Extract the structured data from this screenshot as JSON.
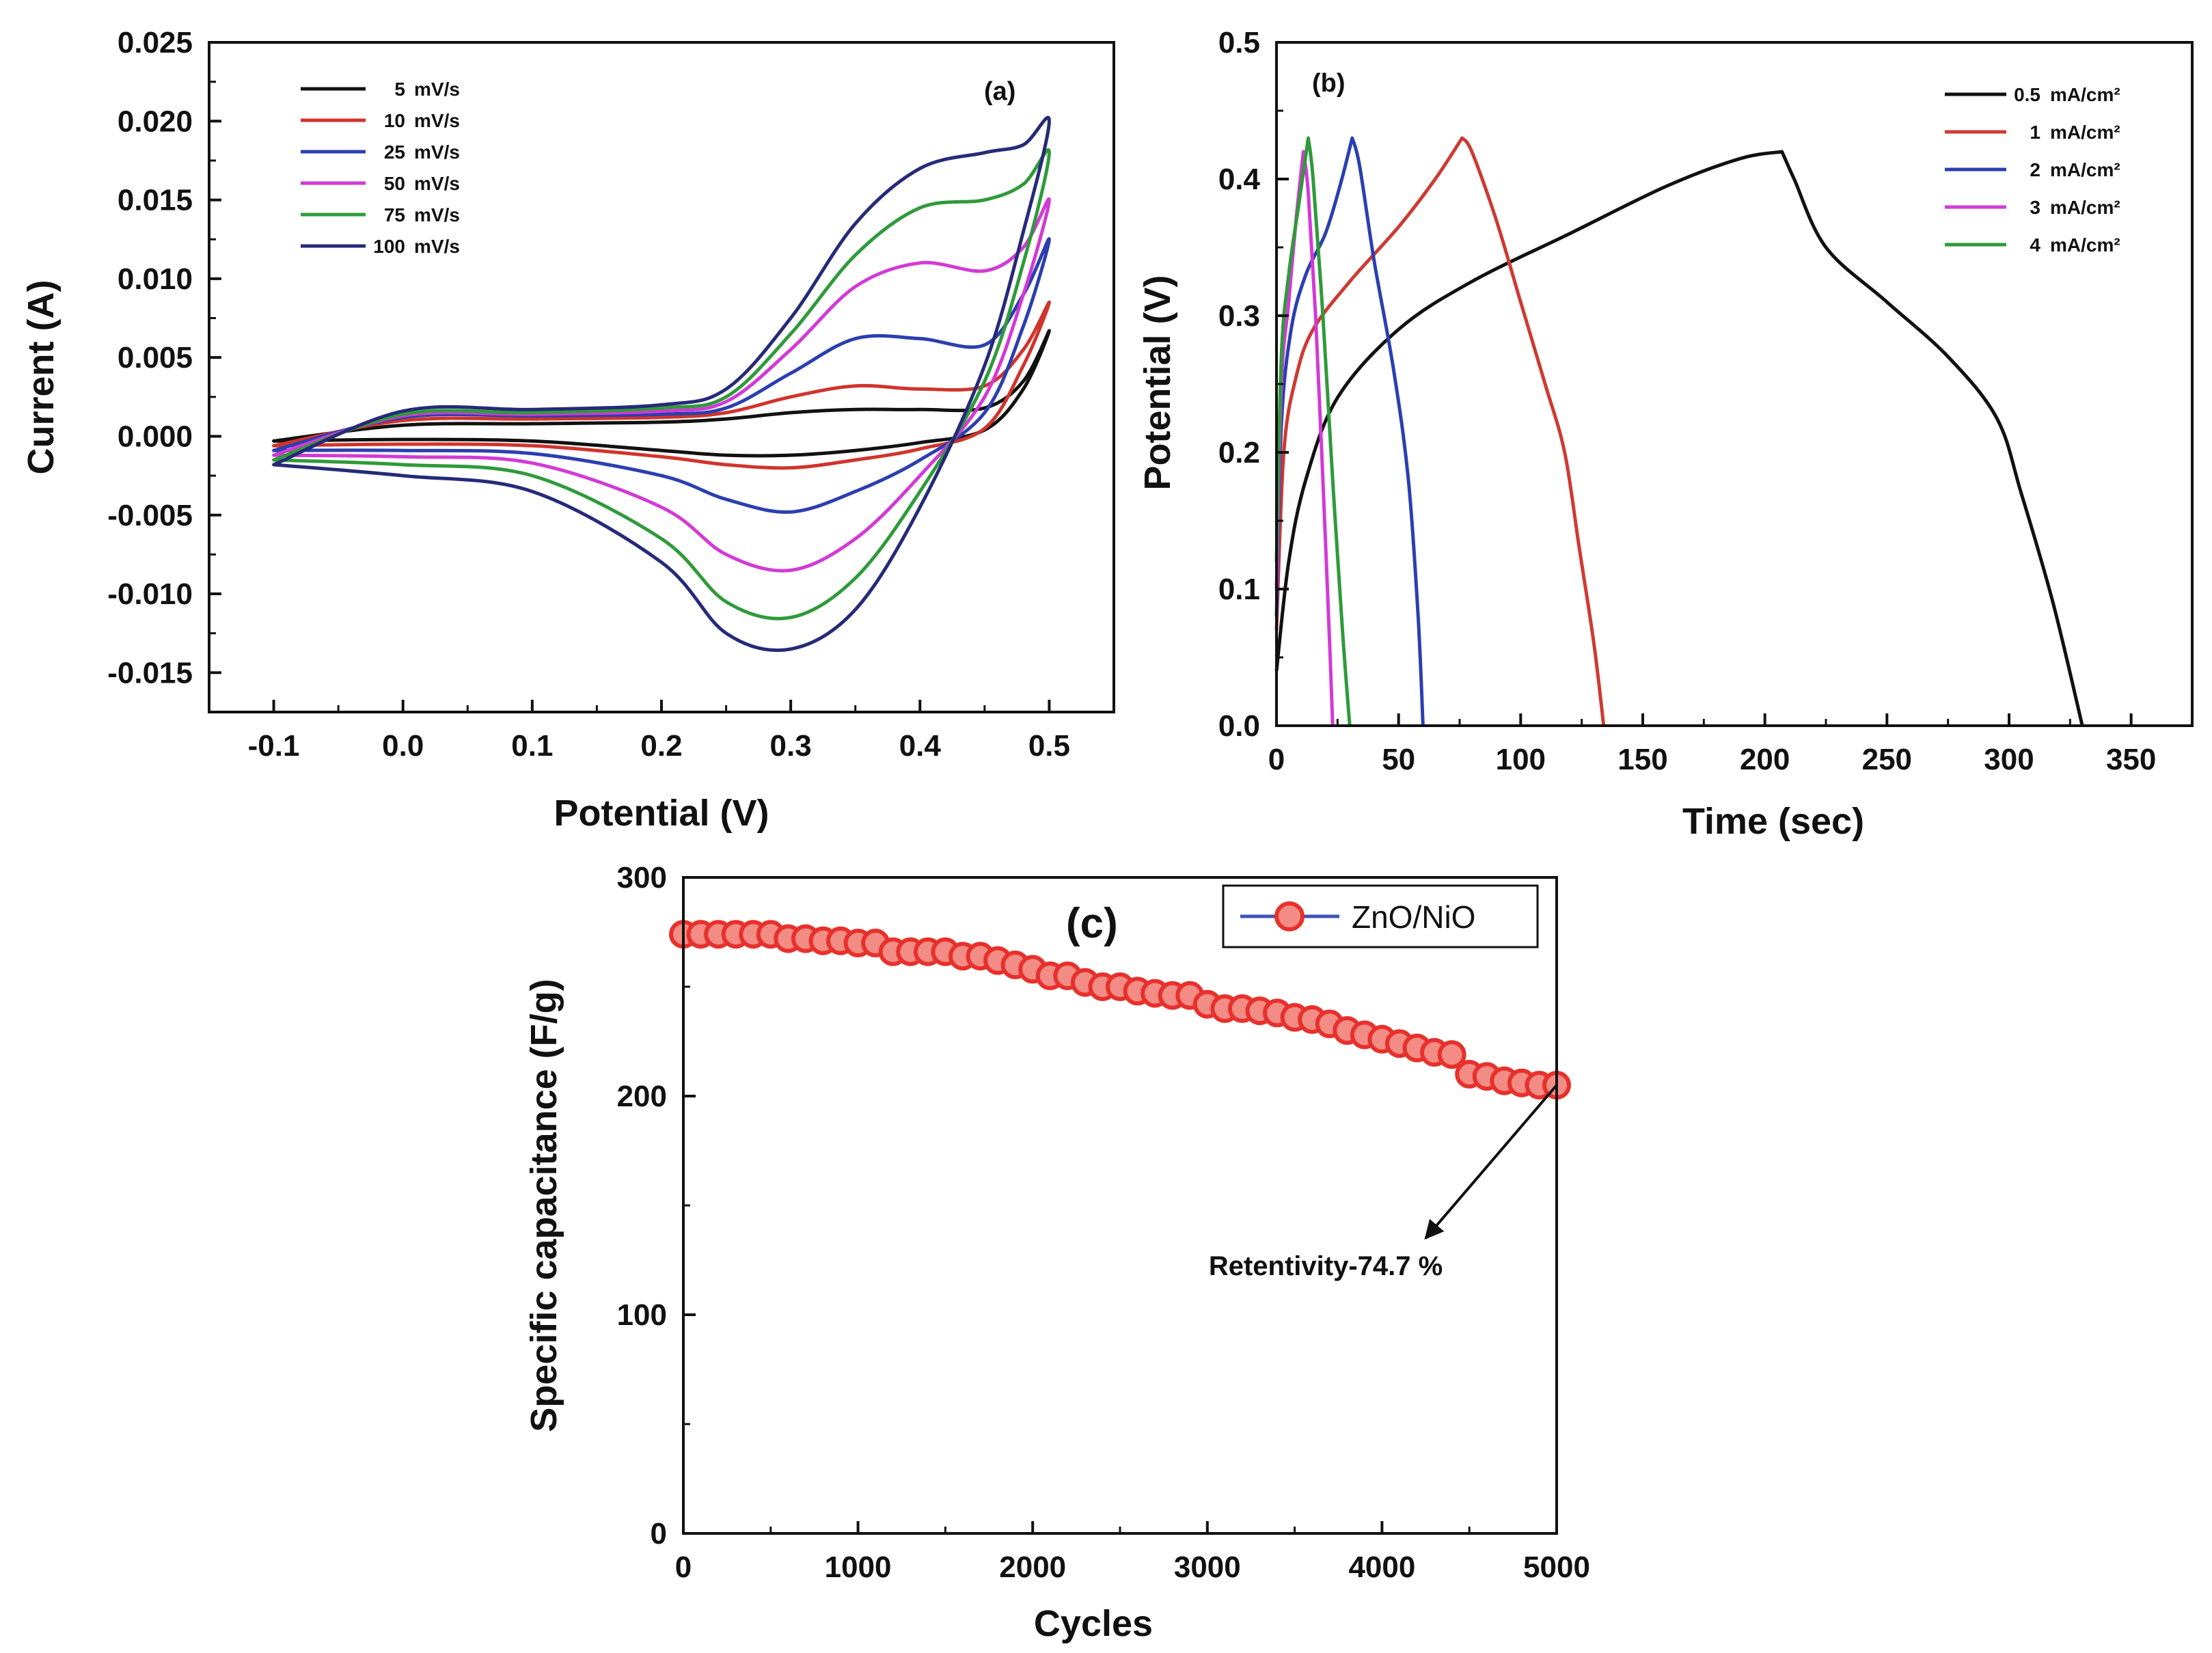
{
  "chart_data": [
    {
      "panel": "(a)",
      "type": "line",
      "title": "",
      "xlabel": "Potential (V)",
      "ylabel": "Current (A)",
      "xlim": [
        -0.15,
        0.55
      ],
      "ylim": [
        -0.0175,
        0.025
      ],
      "xticks": [
        -0.1,
        0.0,
        0.1,
        0.2,
        0.3,
        0.4,
        0.5
      ],
      "xtick_labels": [
        "-0.1",
        "0.0",
        "0.1",
        "0.2",
        "0.3",
        "0.4",
        "0.5"
      ],
      "yticks": [
        -0.015,
        -0.01,
        -0.005,
        0.0,
        0.005,
        0.01,
        0.015,
        0.02,
        0.025
      ],
      "ytick_labels": [
        "-0.015",
        "-0.010",
        "-0.005",
        "0.000",
        "0.005",
        "0.010",
        "0.015",
        "0.020",
        "0.025"
      ],
      "legend_position": "top-left",
      "series": [
        {
          "name": "5  mV/s",
          "label_rate": "5",
          "unit": "mV/s",
          "color": "#111111",
          "x": [
            -0.1,
            0.0,
            0.1,
            0.2,
            0.25,
            0.3,
            0.35,
            0.4,
            0.45,
            0.48,
            0.5,
            0.48,
            0.45,
            0.4,
            0.35,
            0.3,
            0.25,
            0.2,
            0.1,
            0.0,
            -0.1
          ],
          "y": [
            -0.0003,
            0.0007,
            0.0008,
            0.0009,
            0.0011,
            0.0015,
            0.0017,
            0.0017,
            0.0018,
            0.0035,
            0.0067,
            0.003,
            0.0004,
            -0.0004,
            -0.0009,
            -0.0012,
            -0.0012,
            -0.0009,
            -0.0003,
            -0.0002,
            -0.0003
          ]
        },
        {
          "name": "10  mV/s",
          "label_rate": "10",
          "unit": "mV/s",
          "color": "#d0342c",
          "x": [
            -0.1,
            0.0,
            0.1,
            0.2,
            0.25,
            0.3,
            0.35,
            0.4,
            0.45,
            0.48,
            0.5,
            0.48,
            0.45,
            0.4,
            0.35,
            0.3,
            0.25,
            0.2,
            0.1,
            0.0,
            -0.1
          ],
          "y": [
            -0.0006,
            0.001,
            0.0011,
            0.0012,
            0.0015,
            0.0025,
            0.0032,
            0.003,
            0.0032,
            0.0055,
            0.0085,
            0.0045,
            0.0005,
            -0.0008,
            -0.0015,
            -0.002,
            -0.0018,
            -0.0013,
            -0.0006,
            -0.0005,
            -0.0006
          ]
        },
        {
          "name": "25  mV/s",
          "label_rate": "25",
          "unit": "mV/s",
          "color": "#2b3fb0",
          "x": [
            -0.1,
            0.0,
            0.1,
            0.2,
            0.25,
            0.3,
            0.35,
            0.4,
            0.45,
            0.48,
            0.5,
            0.48,
            0.45,
            0.4,
            0.35,
            0.3,
            0.25,
            0.2,
            0.1,
            0.0,
            -0.1
          ],
          "y": [
            -0.0009,
            0.0012,
            0.0013,
            0.0014,
            0.0018,
            0.004,
            0.0062,
            0.0062,
            0.0058,
            0.009,
            0.0125,
            0.007,
            0.0015,
            -0.0015,
            -0.0035,
            -0.0048,
            -0.004,
            -0.0025,
            -0.0011,
            -0.0009,
            -0.0009
          ]
        },
        {
          "name": "50  mV/s",
          "label_rate": "50",
          "unit": "mV/s",
          "color": "#d23ad6",
          "x": [
            -0.1,
            0.0,
            0.1,
            0.2,
            0.25,
            0.3,
            0.35,
            0.4,
            0.45,
            0.48,
            0.5,
            0.48,
            0.45,
            0.4,
            0.35,
            0.3,
            0.25,
            0.2,
            0.1,
            0.0,
            -0.1
          ],
          "y": [
            -0.0012,
            0.0013,
            0.0014,
            0.0016,
            0.0022,
            0.0055,
            0.0095,
            0.011,
            0.0105,
            0.012,
            0.015,
            0.009,
            0.0025,
            -0.0025,
            -0.0065,
            -0.0085,
            -0.0075,
            -0.0045,
            -0.0017,
            -0.0013,
            -0.0012
          ]
        },
        {
          "name": "75  mV/s",
          "label_rate": "75",
          "unit": "mV/s",
          "color": "#2f9a3a",
          "x": [
            -0.1,
            0.0,
            0.1,
            0.2,
            0.25,
            0.3,
            0.35,
            0.4,
            0.45,
            0.48,
            0.5,
            0.48,
            0.45,
            0.4,
            0.35,
            0.3,
            0.25,
            0.2,
            0.1,
            0.0,
            -0.1
          ],
          "y": [
            -0.0015,
            0.0014,
            0.0015,
            0.0018,
            0.0025,
            0.0065,
            0.0115,
            0.0145,
            0.015,
            0.016,
            0.018,
            0.011,
            0.0035,
            -0.0035,
            -0.009,
            -0.0115,
            -0.0105,
            -0.0065,
            -0.0025,
            -0.0018,
            -0.0015
          ]
        },
        {
          "name": "100 mV/s",
          "label_rate": "100",
          "unit": "mV/s",
          "color": "#262a78",
          "x": [
            -0.1,
            0.0,
            0.1,
            0.2,
            0.25,
            0.3,
            0.35,
            0.4,
            0.45,
            0.48,
            0.5,
            0.48,
            0.45,
            0.4,
            0.35,
            0.3,
            0.25,
            0.2,
            0.1,
            0.0,
            -0.1
          ],
          "y": [
            -0.0018,
            0.0016,
            0.0017,
            0.002,
            0.003,
            0.0075,
            0.0135,
            0.017,
            0.018,
            0.0185,
            0.02,
            0.013,
            0.0045,
            -0.0045,
            -0.011,
            -0.0135,
            -0.0125,
            -0.008,
            -0.0035,
            -0.0025,
            -0.0018
          ]
        }
      ]
    },
    {
      "panel": "(b)",
      "type": "line",
      "title": "",
      "xlabel": "Time (sec)",
      "ylabel": "Potential (V)",
      "xlim": [
        0,
        375
      ],
      "ylim": [
        0,
        0.5
      ],
      "xticks": [
        0,
        50,
        100,
        150,
        200,
        250,
        300,
        350
      ],
      "xtick_labels": [
        "0",
        "50",
        "100",
        "150",
        "200",
        "250",
        "300",
        "350"
      ],
      "yticks": [
        0.0,
        0.1,
        0.2,
        0.3,
        0.4,
        0.5
      ],
      "ytick_labels": [
        "0.0",
        "0.1",
        "0.2",
        "0.3",
        "0.4",
        "0.5"
      ],
      "legend_position": "top-right",
      "series": [
        {
          "name": "0.5 mA/cm²",
          "label_value": "0.5",
          "unit": "mA/cm²",
          "color": "#111111",
          "x": [
            0,
            5,
            12,
            25,
            50,
            80,
            120,
            160,
            190,
            207,
            212,
            225,
            250,
            275,
            295,
            305,
            318,
            330
          ],
          "y": [
            0.04,
            0.12,
            0.18,
            0.24,
            0.29,
            0.325,
            0.36,
            0.395,
            0.415,
            0.42,
            0.4,
            0.35,
            0.31,
            0.27,
            0.225,
            0.17,
            0.09,
            0.0
          ],
          "charge_end_x": 207
        },
        {
          "name": "1 mA/cm²",
          "label_value": "1",
          "unit": "mA/cm²",
          "color": "#cc3b33",
          "x": [
            0,
            3,
            8,
            15,
            30,
            50,
            65,
            76,
            80,
            90,
            100,
            110,
            118,
            124,
            130,
            134
          ],
          "y": [
            0.07,
            0.2,
            0.255,
            0.29,
            0.325,
            0.365,
            0.4,
            0.43,
            0.42,
            0.37,
            0.31,
            0.25,
            0.2,
            0.13,
            0.06,
            0.0
          ],
          "charge_end_x": 76
        },
        {
          "name": "2 mA/cm²",
          "label_value": "2",
          "unit": "mA/cm²",
          "color": "#2b3fb0",
          "x": [
            0,
            2,
            6,
            12,
            20,
            26,
            31,
            34,
            40,
            48,
            54,
            58,
            60
          ],
          "y": [
            0.08,
            0.22,
            0.29,
            0.33,
            0.36,
            0.395,
            0.43,
            0.41,
            0.34,
            0.26,
            0.18,
            0.08,
            0.0
          ],
          "charge_end_x": 31
        },
        {
          "name": "3 mA/cm²",
          "label_value": "3",
          "unit": "mA/cm²",
          "color": "#d23ad6",
          "x": [
            0,
            2,
            5,
            8,
            11,
            13,
            16,
            19,
            22,
            23
          ],
          "y": [
            0.1,
            0.25,
            0.31,
            0.37,
            0.42,
            0.39,
            0.3,
            0.18,
            0.05,
            0.0
          ],
          "charge_end_x": 11
        },
        {
          "name": "4 mA/cm²",
          "label_value": "4",
          "unit": "mA/cm²",
          "color": "#2f9a3a",
          "x": [
            0,
            2,
            5,
            9,
            13,
            15,
            19,
            23,
            27,
            30
          ],
          "y": [
            0.12,
            0.27,
            0.33,
            0.38,
            0.43,
            0.4,
            0.3,
            0.18,
            0.07,
            0.0
          ],
          "charge_end_x": 13
        }
      ]
    },
    {
      "panel": "(c)",
      "type": "scatter",
      "title": "",
      "xlabel": "Cycles",
      "ylabel": "Specific capacitance (F/g)",
      "xlim": [
        0,
        5000
      ],
      "ylim": [
        0,
        300
      ],
      "xticks": [
        0,
        1000,
        2000,
        3000,
        4000,
        5000
      ],
      "xtick_labels": [
        "0",
        "1000",
        "2000",
        "3000",
        "4000",
        "5000"
      ],
      "yticks": [
        0,
        100,
        200,
        300
      ],
      "ytick_labels": [
        "0",
        "100",
        "200",
        "300"
      ],
      "legend_position": "top-right",
      "series": [
        {
          "name": "ZnO/NiO",
          "marker_color": "#e8302c",
          "line_color": "#3e55b5",
          "x": [
            0,
            100,
            200,
            300,
            400,
            500,
            600,
            700,
            800,
            900,
            1000,
            1100,
            1200,
            1300,
            1400,
            1500,
            1600,
            1700,
            1800,
            1900,
            2000,
            2100,
            2200,
            2300,
            2400,
            2500,
            2600,
            2700,
            2800,
            2900,
            3000,
            3100,
            3200,
            3300,
            3400,
            3500,
            3600,
            3700,
            3800,
            3900,
            4000,
            4100,
            4200,
            4300,
            4400,
            4500,
            4600,
            4700,
            4800,
            4900,
            5000
          ],
          "y": [
            274,
            274,
            274,
            274,
            274,
            274,
            272,
            272,
            271,
            271,
            270,
            270,
            266,
            266,
            266,
            266,
            264,
            264,
            262,
            260,
            258,
            255,
            255,
            252,
            250,
            250,
            248,
            247,
            246,
            246,
            242,
            240,
            240,
            239,
            238,
            236,
            235,
            233,
            230,
            228,
            226,
            224,
            222,
            220,
            219,
            210,
            209,
            207,
            206,
            205,
            205
          ]
        }
      ],
      "annotation": {
        "text": "Retentivity-74.7 %",
        "arrow_from": [
          5000,
          205
        ],
        "arrow_to": [
          4250,
          135
        ]
      }
    }
  ]
}
